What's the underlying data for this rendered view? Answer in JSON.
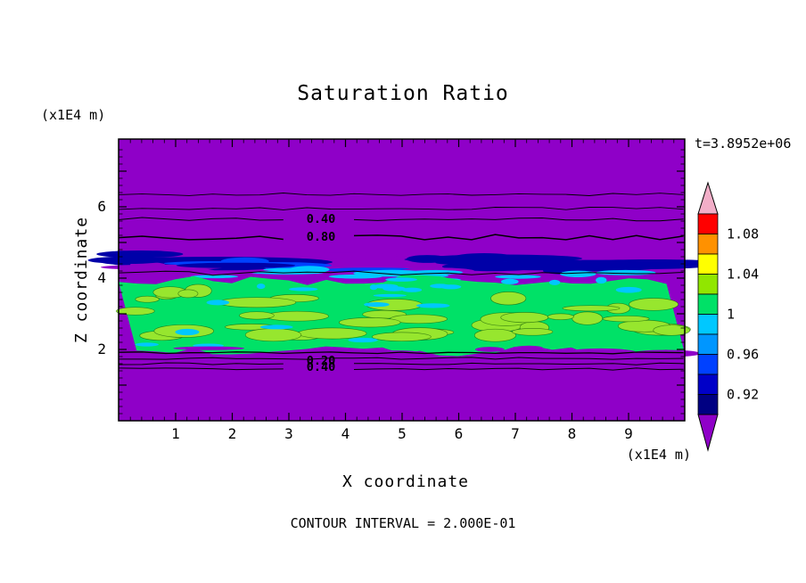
{
  "title": "Saturation Ratio",
  "timestamp": "t=3.8952e+06",
  "footer": "CONTOUR INTERVAL = 2.000E-01",
  "axes": {
    "x": {
      "label": "X coordinate",
      "unit": "(x1E4 m)",
      "ticks": [
        1,
        2,
        3,
        4,
        5,
        6,
        7,
        8,
        9
      ]
    },
    "z": {
      "label": "Z coordinate",
      "unit": "(x1E4 m)",
      "ticks": [
        2,
        4,
        6
      ]
    }
  },
  "colorbar": {
    "labels": [
      "1.08",
      "1.04",
      "1",
      "0.96",
      "0.92"
    ],
    "top_color": "#F2AEC8",
    "bottom_color": "#8F00C8",
    "band_colors": [
      "#FF0000",
      "#FF9100",
      "#FFFF00",
      "#91E600",
      "#00E167",
      "#00C8FF",
      "#0096FF",
      "#0041FF",
      "#0000C8",
      "#000082"
    ]
  },
  "field_colors": {
    "purple": "#8F00C8",
    "navy": "#0000A8",
    "blue": "#0041FF",
    "cyan": "#00C8FF",
    "green": "#00E167",
    "yellow_green": "#97E62E",
    "line": "#000000"
  },
  "contours": {
    "upper_lines_z": [
      6.35,
      5.95,
      5.65,
      5.15
    ],
    "upper_labels": [
      {
        "text": "0.40",
        "z": 5.65
      },
      {
        "text": "0.80",
        "z": 5.15
      }
    ],
    "lower_lines_z": [
      1.9,
      1.75,
      1.6,
      1.45
    ],
    "lower_labels": [
      {
        "text": "0.20",
        "z": 1.68
      },
      {
        "text": "0.40",
        "z": 1.5
      }
    ]
  },
  "chart_data": {
    "type": "heatmap",
    "title": "Saturation Ratio",
    "xlabel": "X coordinate (x1E4 m)",
    "ylabel": "Z coordinate (x1E4 m)",
    "x_range": [
      0,
      10
    ],
    "z_range": [
      0,
      7.9
    ],
    "x_ticks": [
      1,
      2,
      3,
      4,
      5,
      6,
      7,
      8,
      9
    ],
    "z_ticks": [
      2,
      4,
      6
    ],
    "time": "t=3.8952e+06",
    "contour_interval": 0.2,
    "colorbar_values": [
      1.08,
      1.04,
      1.0,
      0.96,
      0.92
    ],
    "contour_line_labels": [
      0.4,
      0.8,
      0.2,
      0.4
    ],
    "legend_position": "right",
    "grid": false,
    "field_bands": [
      {
        "z_range": [
          5.0,
          7.9
        ],
        "value": "uniform purple (ratio < 0.90) with thin black contour lines; 0.40 labeled near z=5.65, 0.80 labeled near z=5.15"
      },
      {
        "z_range": [
          4.1,
          5.0
        ],
        "value": "dark blue and blue horizontal streaks with purple gaps, ratio ~0.90-0.96"
      },
      {
        "z_range": [
          3.8,
          4.2
        ],
        "value": "cyan streak fringe, ratio ~0.96-0.98"
      },
      {
        "z_range": [
          1.9,
          4.0
        ],
        "value": "mottled green band with yellow-green patches and cyan specks, ratio ~1.00-1.04"
      },
      {
        "z_range": [
          0,
          1.9
        ],
        "value": "uniform purple (ratio < 0.90) with stacked contour lines labeled 0.20 and 0.40 near z=1.5-1.9"
      }
    ]
  }
}
